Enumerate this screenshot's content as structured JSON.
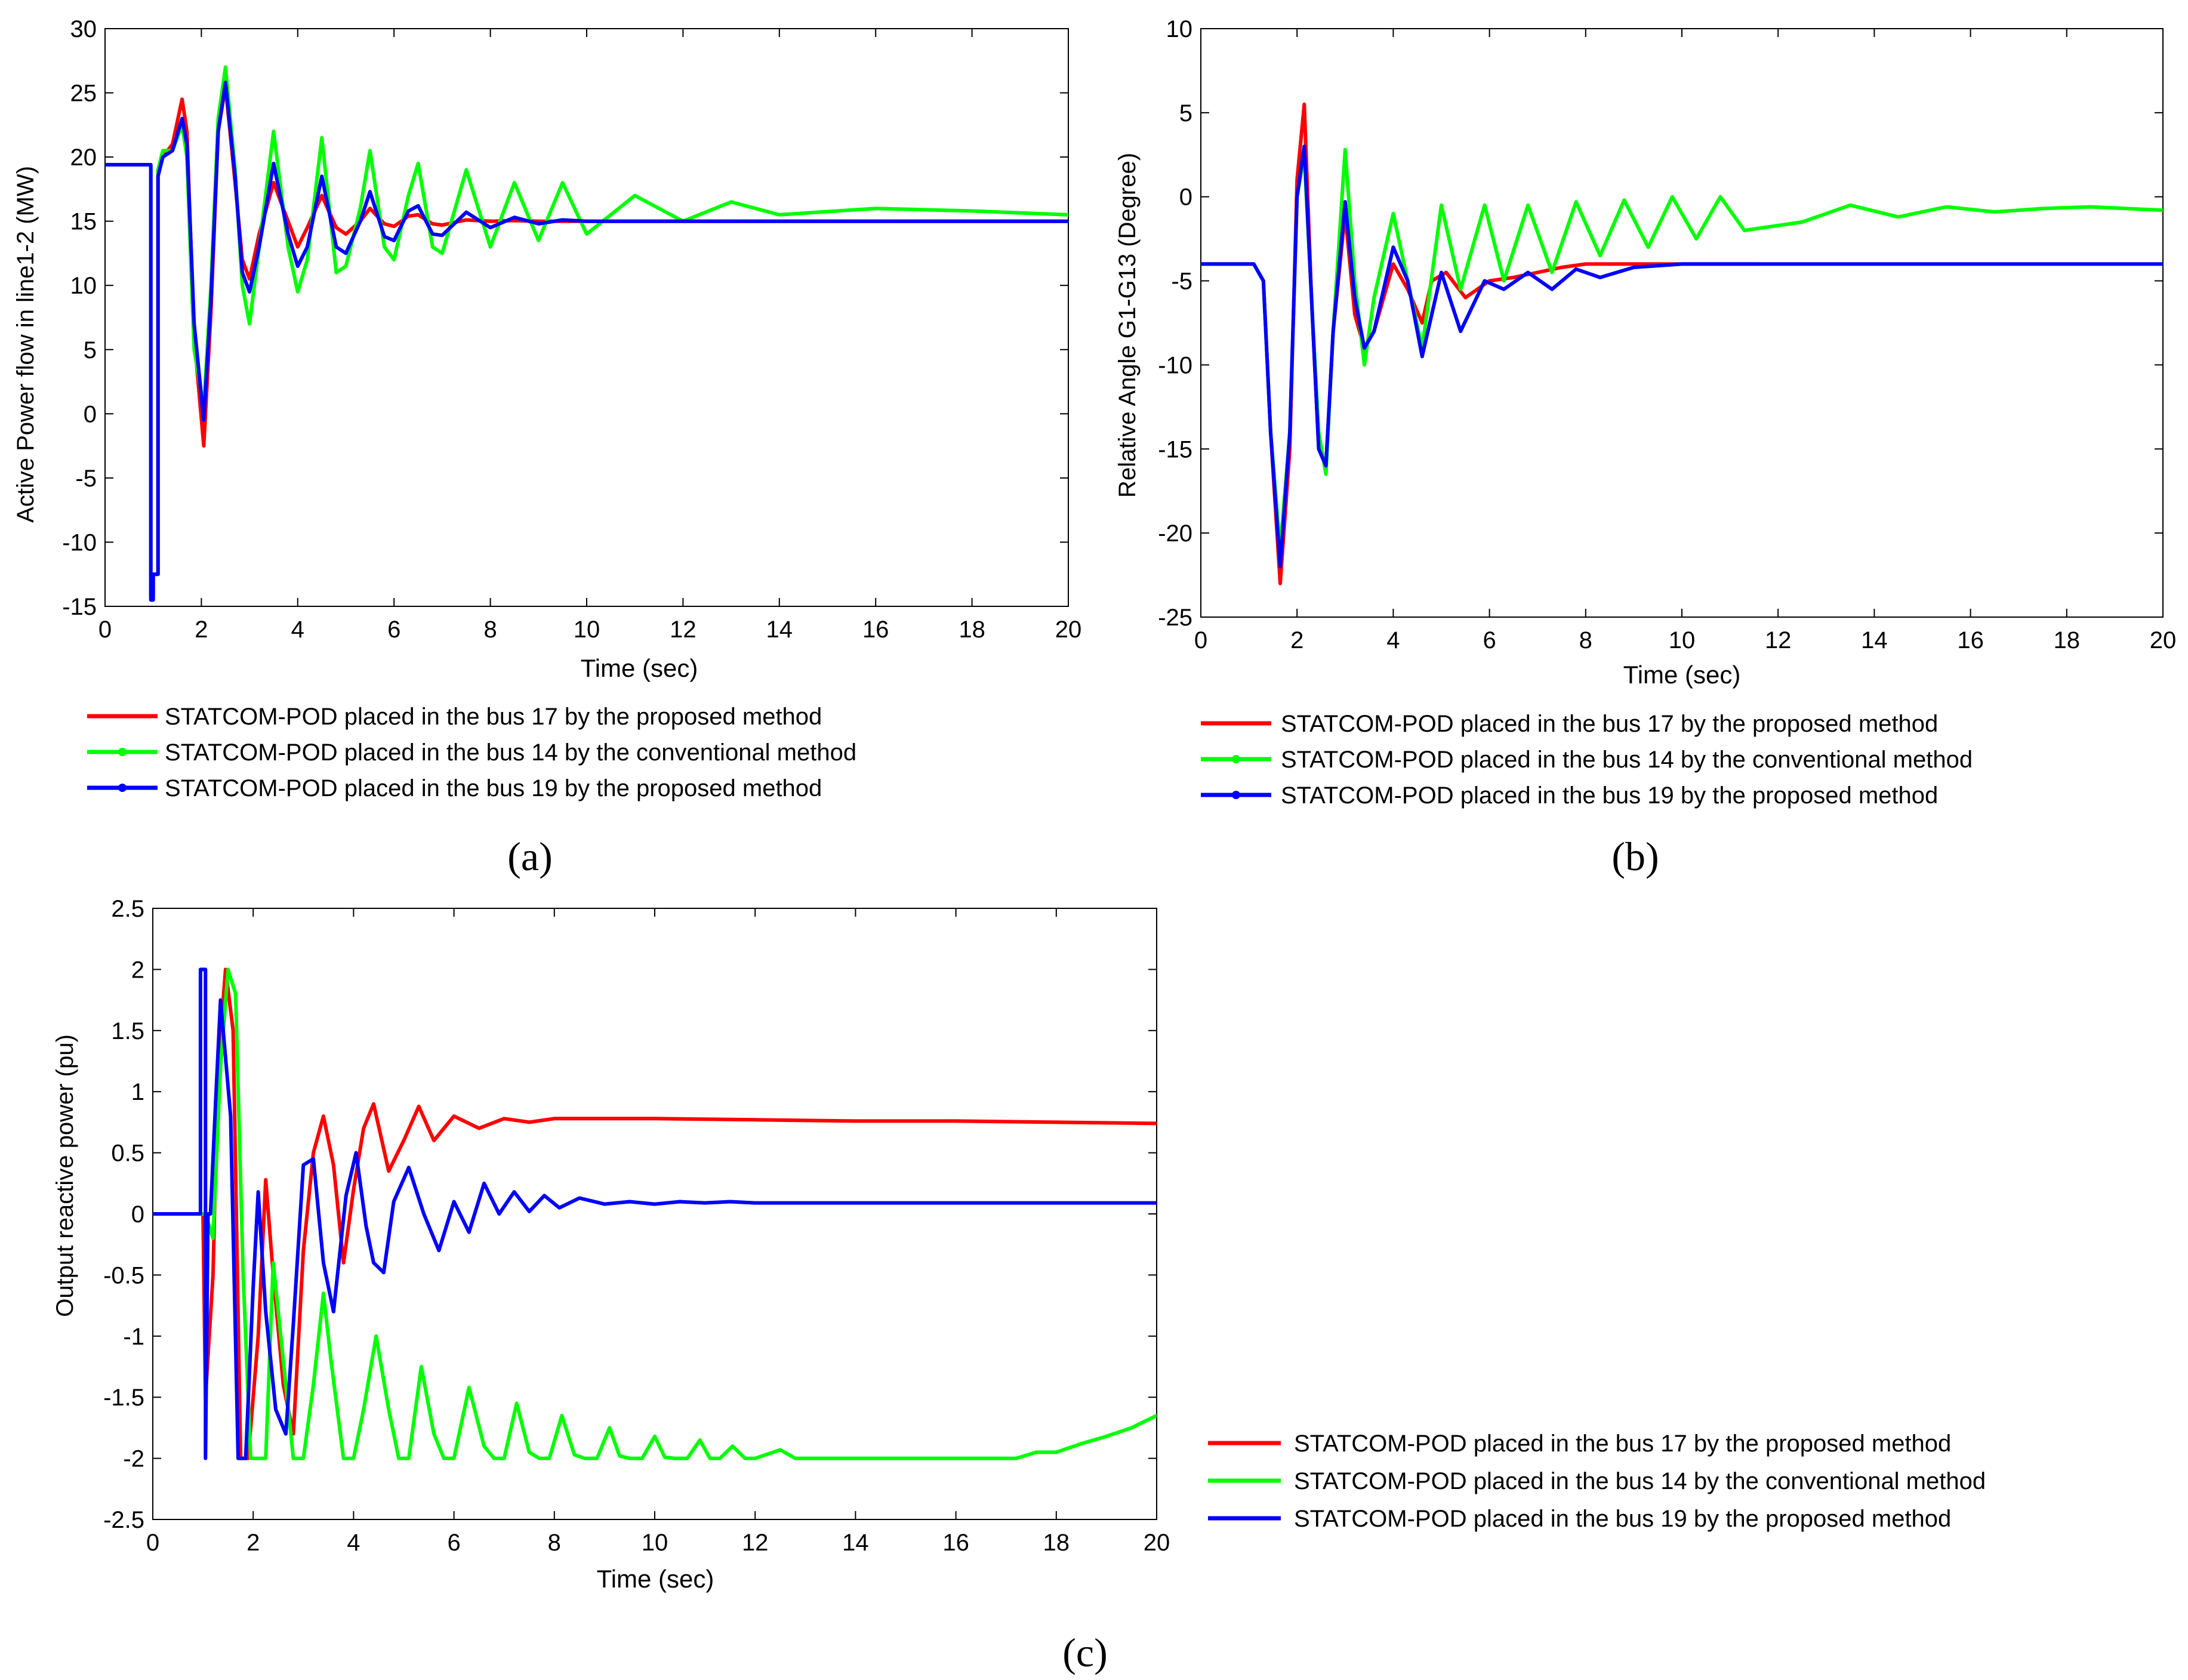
{
  "figure": {
    "panel_labels": [
      "(a)",
      "(b)",
      "(c)"
    ],
    "series_colors": [
      "#ff0000",
      "#00ff00",
      "#0000ff"
    ]
  },
  "chart_data": [
    {
      "id": "a",
      "type": "line",
      "title": "",
      "xlabel": "Time (sec)",
      "ylabel": "Active Power flow in line1-2 (MW)",
      "xlim": [
        0,
        20
      ],
      "ylim": [
        -15,
        30
      ],
      "xticks": [
        0,
        2,
        4,
        6,
        8,
        10,
        12,
        14,
        16,
        18,
        20
      ],
      "yticks": [
        -15,
        -10,
        -5,
        0,
        5,
        10,
        15,
        20,
        25,
        30
      ],
      "grid": false,
      "legend_position": "below",
      "series": [
        {
          "name": "STATCOM-POD placed in the bus 17 by the proposed method",
          "color": "#ff0000",
          "marker": false,
          "x": [
            0,
            0.95,
            0.95,
            1.0,
            1.0,
            1.1,
            1.1,
            1.2,
            1.4,
            1.6,
            1.7,
            1.85,
            2.05,
            2.2,
            2.35,
            2.5,
            2.7,
            2.85,
            3.0,
            3.2,
            3.5,
            3.8,
            4.0,
            4.2,
            4.5,
            4.8,
            5.0,
            5.3,
            5.5,
            5.8,
            6.0,
            6.3,
            6.5,
            6.8,
            7.0,
            7.5,
            8.0,
            8.5,
            9.0,
            9.5,
            10,
            11,
            12,
            13,
            14,
            16,
            18,
            20
          ],
          "y": [
            19.4,
            19.4,
            -14,
            -14,
            -12.5,
            -12.5,
            19,
            20,
            21,
            24.5,
            22,
            6,
            -2.5,
            8,
            22,
            25.5,
            18,
            12,
            10.5,
            14,
            18,
            15,
            13,
            14.5,
            17,
            14.5,
            14,
            15,
            16,
            14.8,
            14.6,
            15.4,
            15.5,
            14.8,
            14.7,
            15.1,
            15,
            15.05,
            15,
            15,
            15,
            15,
            15,
            15,
            15,
            15,
            15,
            15
          ]
        },
        {
          "name": "STATCOM-POD placed in the bus 14 by the conventional method",
          "color": "#00ff00",
          "marker": true,
          "x": [
            0,
            0.95,
            0.95,
            1.0,
            1.0,
            1.1,
            1.1,
            1.2,
            1.4,
            1.6,
            1.7,
            1.85,
            2.05,
            2.2,
            2.35,
            2.5,
            2.7,
            2.85,
            3.0,
            3.2,
            3.5,
            3.8,
            4.0,
            4.2,
            4.5,
            4.8,
            5.0,
            5.3,
            5.5,
            5.8,
            6.0,
            6.3,
            6.5,
            6.8,
            7.0,
            7.5,
            8.0,
            8.5,
            9.0,
            9.5,
            10,
            11,
            12,
            13,
            14,
            16,
            18,
            20
          ],
          "y": [
            19.4,
            19.4,
            -14,
            -14,
            -12.5,
            -12.5,
            19,
            20.5,
            20.5,
            22.5,
            20,
            5,
            0.5,
            10,
            23,
            27,
            19,
            10,
            7,
            13,
            22,
            13,
            9.5,
            12,
            21.5,
            11,
            11.5,
            16,
            20.5,
            13,
            12,
            17,
            19.5,
            13,
            12.5,
            19,
            13,
            18,
            13.5,
            18,
            14,
            17,
            15,
            16.5,
            15.5,
            16,
            15.8,
            15.5
          ]
        },
        {
          "name": "STATCOM-POD placed in the bus 19 by the proposed method",
          "color": "#0000ff",
          "marker": true,
          "x": [
            0,
            0.95,
            0.95,
            1.0,
            1.0,
            1.1,
            1.1,
            1.2,
            1.4,
            1.6,
            1.7,
            1.85,
            2.05,
            2.2,
            2.35,
            2.5,
            2.7,
            2.85,
            3.0,
            3.2,
            3.5,
            3.8,
            4.0,
            4.2,
            4.5,
            4.8,
            5.0,
            5.3,
            5.5,
            5.8,
            6.0,
            6.3,
            6.5,
            6.8,
            7.0,
            7.5,
            8.0,
            8.5,
            9.0,
            9.5,
            10,
            11,
            12,
            13,
            14,
            16,
            18,
            20
          ],
          "y": [
            19.4,
            19.4,
            -14.5,
            -14.5,
            -12.5,
            -12.5,
            18.5,
            20,
            20.5,
            23,
            21,
            7,
            -0.5,
            9,
            22,
            25.8,
            18.5,
            11,
            9.5,
            13,
            19.5,
            14,
            11.5,
            13,
            18.5,
            13,
            12.5,
            15,
            17.3,
            13.8,
            13.5,
            15.8,
            16.2,
            14,
            13.9,
            15.7,
            14.5,
            15.3,
            14.8,
            15.1,
            15,
            15,
            15,
            15,
            15,
            15,
            15,
            15
          ]
        }
      ]
    },
    {
      "id": "b",
      "type": "line",
      "title": "",
      "xlabel": "Time (sec)",
      "ylabel": "Relative Angle G1-G13 (Degree)",
      "xlim": [
        0,
        20
      ],
      "ylim": [
        -25,
        10
      ],
      "xticks": [
        0,
        2,
        4,
        6,
        8,
        10,
        12,
        14,
        16,
        18,
        20
      ],
      "yticks": [
        -25,
        -20,
        -15,
        -10,
        -5,
        0,
        5,
        10
      ],
      "grid": false,
      "legend_position": "below",
      "series": [
        {
          "name": "STATCOM-POD placed in the bus 17 by the proposed method",
          "color": "#ff0000",
          "marker": false,
          "x": [
            0,
            1.1,
            1.3,
            1.45,
            1.65,
            1.85,
            2.0,
            2.15,
            2.3,
            2.45,
            2.6,
            2.75,
            3.0,
            3.2,
            3.4,
            3.6,
            4.0,
            4.3,
            4.6,
            4.8,
            5.1,
            5.5,
            6.0,
            6.5,
            7.0,
            7.5,
            8.0,
            9.0,
            10,
            11.6
          ],
          "y": [
            -4,
            -4,
            -5,
            -14,
            -23,
            -15,
            1,
            5.5,
            -6,
            -15,
            -16,
            -8,
            -1,
            -7,
            -9,
            -8,
            -4,
            -5.5,
            -7.5,
            -5,
            -4.5,
            -6,
            -5,
            -4.8,
            -4.5,
            -4.2,
            -4,
            -4,
            -4,
            -4
          ]
        },
        {
          "name": "STATCOM-POD placed in the bus 14 by the conventional method",
          "color": "#00ff00",
          "marker": true,
          "x": [
            0,
            1.1,
            1.3,
            1.45,
            1.65,
            1.85,
            2.0,
            2.15,
            2.3,
            2.45,
            2.6,
            2.75,
            3.0,
            3.2,
            3.4,
            3.6,
            4.0,
            4.3,
            4.6,
            5.0,
            5.4,
            5.9,
            6.3,
            6.8,
            7.3,
            7.8,
            8.3,
            8.8,
            9.3,
            9.8,
            10.3,
            10.8,
            11.3,
            12.5,
            13.5,
            14.5,
            15.5,
            16.5,
            17.5,
            18.5,
            20
          ],
          "y": [
            -4,
            -4,
            -5,
            -14,
            -21,
            -14,
            0,
            2.5,
            -6,
            -14,
            -16.5,
            -8,
            2.8,
            -5,
            -10,
            -6,
            -1,
            -5,
            -9,
            -0.5,
            -5.5,
            -0.5,
            -5,
            -0.5,
            -4.5,
            -0.3,
            -3.5,
            -0.2,
            -3,
            0,
            -2.5,
            0,
            -2,
            -1.5,
            -0.5,
            -1.2,
            -0.6,
            -0.9,
            -0.7,
            -0.6,
            -0.8
          ]
        },
        {
          "name": "STATCOM-POD placed in the bus 19 by the proposed method",
          "color": "#0000ff",
          "marker": true,
          "x": [
            0,
            1.1,
            1.3,
            1.45,
            1.65,
            1.85,
            2.0,
            2.15,
            2.3,
            2.45,
            2.6,
            2.75,
            3.0,
            3.2,
            3.4,
            3.6,
            4.0,
            4.3,
            4.6,
            5.0,
            5.4,
            5.9,
            6.3,
            6.8,
            7.3,
            7.8,
            8.3,
            9.0,
            10,
            11,
            12,
            14,
            16,
            18,
            20
          ],
          "y": [
            -4,
            -4,
            -5,
            -14,
            -22,
            -14,
            0,
            3,
            -6,
            -15,
            -16,
            -8,
            -0.3,
            -6,
            -9,
            -8,
            -3,
            -5,
            -9.5,
            -4.5,
            -8,
            -5,
            -5.5,
            -4.5,
            -5.5,
            -4.3,
            -4.8,
            -4.2,
            -4,
            -4,
            -4,
            -4,
            -4,
            -4,
            -4
          ]
        }
      ]
    },
    {
      "id": "c",
      "type": "line",
      "title": "",
      "xlabel": "Time (sec)",
      "ylabel": "Output reactive power (pu)",
      "xlim": [
        0,
        20
      ],
      "ylim": [
        -2.5,
        2.5
      ],
      "xticks": [
        0,
        2,
        4,
        6,
        8,
        10,
        12,
        14,
        16,
        18,
        20
      ],
      "yticks": [
        -2.5,
        -2,
        -1.5,
        -1,
        -0.5,
        0,
        0.5,
        1,
        1.5,
        2,
        2.5
      ],
      "grid": false,
      "legend_position": "right",
      "series": [
        {
          "name": "STATCOM-POD placed in the bus 17 by the proposed method",
          "color": "#ff0000",
          "marker": false,
          "x": [
            0,
            1.0,
            1.05,
            1.2,
            1.3,
            1.45,
            1.6,
            1.75,
            1.9,
            2.1,
            2.25,
            2.4,
            2.6,
            2.8,
            3.0,
            3.2,
            3.4,
            3.6,
            3.8,
            4.0,
            4.2,
            4.4,
            4.7,
            5.0,
            5.3,
            5.6,
            6.0,
            6.5,
            7.0,
            7.5,
            8.0,
            10,
            12,
            14,
            16,
            18,
            20
          ],
          "y": [
            0,
            0,
            -1.5,
            -0.5,
            1.2,
            2,
            1.5,
            -2,
            -2,
            -1,
            0.28,
            -0.5,
            -1.4,
            -1.8,
            -0.3,
            0.5,
            0.8,
            0.4,
            -0.4,
            0.2,
            0.7,
            0.9,
            0.35,
            0.6,
            0.88,
            0.6,
            0.8,
            0.7,
            0.78,
            0.75,
            0.78,
            0.78,
            0.77,
            0.76,
            0.76,
            0.75,
            0.74
          ]
        },
        {
          "name": "STATCOM-POD placed in the bus 14 by the conventional method",
          "color": "#00ff00",
          "marker": true,
          "x": [
            0,
            1.0,
            1.05,
            1.2,
            1.35,
            1.5,
            1.65,
            1.8,
            1.95,
            2.1,
            2.25,
            2.4,
            2.55,
            2.8,
            3.0,
            3.2,
            3.4,
            3.55,
            3.8,
            4.0,
            4.2,
            4.45,
            4.7,
            4.9,
            5.1,
            5.35,
            5.6,
            5.8,
            6.0,
            6.3,
            6.6,
            6.8,
            7.0,
            7.25,
            7.5,
            7.7,
            7.9,
            8.15,
            8.4,
            8.6,
            8.85,
            9.1,
            9.3,
            9.5,
            9.75,
            10,
            10.2,
            10.4,
            10.65,
            10.9,
            11.1,
            11.3,
            11.55,
            11.8,
            12.0,
            12.5,
            12.8,
            13.1,
            14,
            16,
            17.2,
            17.6,
            18.0,
            18.5,
            19.0,
            19.5,
            20
          ],
          "y": [
            0,
            0,
            0,
            -0.2,
            1.2,
            2,
            1.8,
            -0.5,
            -2,
            -2,
            -2,
            -0.4,
            -1,
            -2,
            -2,
            -1.4,
            -0.65,
            -1.2,
            -2,
            -2,
            -1.6,
            -1.0,
            -1.6,
            -2,
            -2,
            -1.25,
            -1.8,
            -2,
            -2,
            -1.42,
            -1.9,
            -2,
            -2,
            -1.55,
            -1.95,
            -2,
            -2,
            -1.65,
            -1.97,
            -2,
            -2,
            -1.75,
            -1.98,
            -2,
            -2,
            -1.82,
            -1.99,
            -2,
            -2,
            -1.85,
            -2,
            -2,
            -1.9,
            -2,
            -2,
            -1.93,
            -2,
            -2,
            -2,
            -2,
            -2,
            -1.95,
            -1.95,
            -1.88,
            -1.82,
            -1.75,
            -1.65
          ]
        },
        {
          "name": "STATCOM-POD placed in the bus 19 by the proposed method",
          "color": "#0000ff",
          "marker": true,
          "x": [
            0,
            0.95,
            0.95,
            1.05,
            1.05,
            1.1,
            1.15,
            1.25,
            1.35,
            1.55,
            1.7,
            1.85,
            2.0,
            2.1,
            2.25,
            2.45,
            2.65,
            2.8,
            3.0,
            3.2,
            3.4,
            3.6,
            3.85,
            4.05,
            4.25,
            4.4,
            4.6,
            4.8,
            5.1,
            5.4,
            5.7,
            6.0,
            6.3,
            6.6,
            6.9,
            7.2,
            7.5,
            7.8,
            8.1,
            8.5,
            9.0,
            9.5,
            10,
            10.5,
            11,
            11.5,
            12,
            14,
            16,
            18,
            20
          ],
          "y": [
            0,
            0,
            2,
            2,
            -2,
            0,
            0,
            0.9,
            1.75,
            0.8,
            -2,
            -2,
            -0.6,
            0.18,
            -0.8,
            -1.6,
            -1.8,
            -0.9,
            0.4,
            0.45,
            -0.4,
            -0.8,
            0.15,
            0.5,
            -0.1,
            -0.4,
            -0.48,
            0.1,
            0.38,
            0.0,
            -0.3,
            0.1,
            -0.15,
            0.25,
            0.0,
            0.18,
            0.02,
            0.15,
            0.05,
            0.13,
            0.08,
            0.1,
            0.08,
            0.1,
            0.09,
            0.1,
            0.09,
            0.09,
            0.09,
            0.09,
            0.09
          ]
        }
      ]
    }
  ]
}
